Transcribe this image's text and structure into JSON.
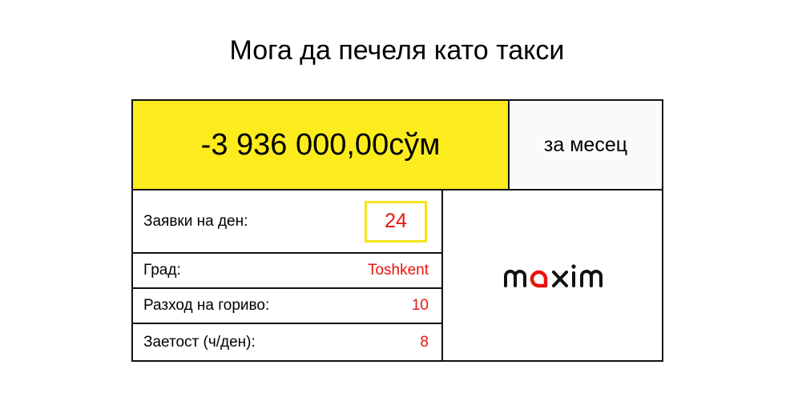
{
  "title": "Мога да печеля като такси",
  "earnings": {
    "amount": "-3 936 000,00сўм",
    "period": "за месец"
  },
  "fields": [
    {
      "label": "Заявки на ден:",
      "value": "24"
    },
    {
      "label": "Град:",
      "value": "Toshkent"
    },
    {
      "label": "Разход на гориво:",
      "value": "10"
    },
    {
      "label": "Заетост (ч/ден):",
      "value": "8"
    }
  ],
  "logo": {
    "text": "maxim",
    "accent_color": "#e8140f"
  },
  "colors": {
    "highlight": "#fcec1e",
    "value": "#e8140f"
  }
}
